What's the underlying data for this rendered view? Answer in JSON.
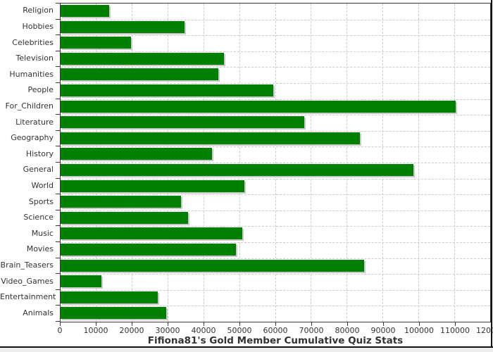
{
  "chart_data": {
    "type": "bar",
    "orientation": "horizontal",
    "title": "Fifiona81's Gold Member Cumulative Quiz Stats",
    "categories": [
      "Religion",
      "Hobbies",
      "Celebrities",
      "Television",
      "Humanities",
      "People",
      "For_Children",
      "Literature",
      "Geography",
      "History",
      "General",
      "World",
      "Sports",
      "Science",
      "Music",
      "Movies",
      "Brain_Teasers",
      "Video_Games",
      "Entertainment",
      "Animals"
    ],
    "values": [
      13500,
      34700,
      19600,
      45700,
      44100,
      59400,
      110300,
      68000,
      83700,
      42200,
      98600,
      51400,
      33700,
      35700,
      50800,
      49000,
      84700,
      11400,
      27100,
      29600
    ],
    "xlim": [
      0,
      120000
    ],
    "x_ticks": [
      0,
      10000,
      20000,
      30000,
      40000,
      50000,
      60000,
      70000,
      80000,
      90000,
      100000,
      110000,
      120000
    ],
    "xlabel": "",
    "ylabel": "",
    "legend": "none",
    "grid": "dashed",
    "bar_color": "#008000",
    "bar_shadow_color": "#c9c9c9",
    "gridline_color": "#cccccc",
    "plot_background": "#ffffff",
    "axis_color": "#3a3a3a",
    "text_color": "#333333"
  }
}
